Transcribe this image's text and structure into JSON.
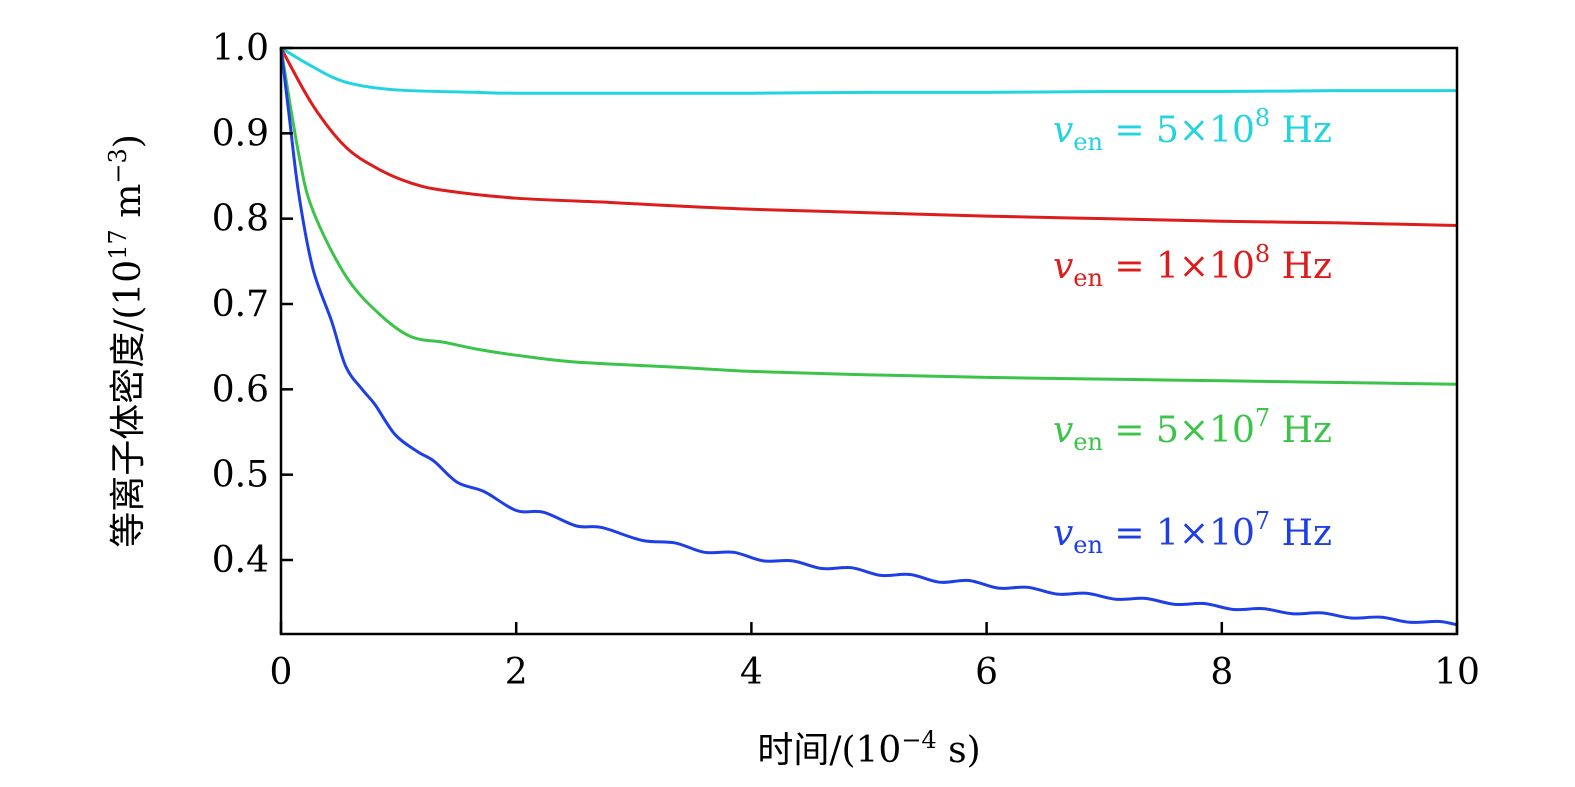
{
  "chart_data": {
    "type": "line",
    "xlabel": {
      "text": "时间/(10",
      "exp": "−4",
      "unit": " s)"
    },
    "ylabel": {
      "text": "等离子体密度/(10",
      "exp": "17",
      "unit": " m",
      "unit_exp": "−3",
      "close": ")"
    },
    "xlim": [
      0,
      10
    ],
    "ylim": [
      0.313,
      1.0
    ],
    "xticks": [
      "0",
      "2",
      "4",
      "6",
      "8",
      "10"
    ],
    "yticks": [
      "1.0",
      "0.9",
      "0.8",
      "0.7",
      "0.6",
      "0.5",
      "0.4"
    ],
    "grid": false,
    "legend": "inline labels at right",
    "series": [
      {
        "name": "v_en = 5×10^8 Hz",
        "label": {
          "symbol": "v",
          "sub": "en",
          "eq": " = 5×10",
          "exp": "8",
          "unit": " Hz"
        },
        "color": "#22d3e0",
        "x": [
          0,
          0.27,
          0.55,
          0.97,
          1.67,
          2,
          3,
          4,
          5,
          6,
          7,
          8,
          9,
          10
        ],
        "y": [
          1.0,
          0.978,
          0.96,
          0.951,
          0.948,
          0.947,
          0.947,
          0.947,
          0.948,
          0.948,
          0.949,
          0.949,
          0.95,
          0.95
        ]
      },
      {
        "name": "v_en = 1×10^8 Hz",
        "label": {
          "symbol": "v",
          "sub": "en",
          "eq": " = 1×10",
          "exp": "8",
          "unit": " Hz"
        },
        "color": "#dd1c1c",
        "x": [
          0,
          0.27,
          0.55,
          0.83,
          1.1,
          1.39,
          2,
          2.8,
          3.35,
          4,
          5,
          6,
          7,
          8,
          9,
          10
        ],
        "y": [
          1.0,
          0.933,
          0.884,
          0.858,
          0.842,
          0.833,
          0.824,
          0.819,
          0.815,
          0.811,
          0.807,
          0.803,
          0.8,
          0.797,
          0.795,
          0.792
        ]
      },
      {
        "name": "v_en = 5×10^7 Hz",
        "label": {
          "symbol": "v",
          "sub": "en",
          "eq": " = 5×10",
          "exp": "7",
          "unit": " Hz"
        },
        "color": "#3cc44a",
        "x": [
          0,
          0.15,
          0.27,
          0.55,
          0.83,
          1.1,
          1.39,
          1.67,
          2,
          2.5,
          3.35,
          4,
          5,
          6,
          7,
          8,
          9,
          10
        ],
        "y": [
          1.0,
          0.876,
          0.81,
          0.733,
          0.689,
          0.662,
          0.655,
          0.647,
          0.64,
          0.632,
          0.626,
          0.621,
          0.617,
          0.614,
          0.612,
          0.61,
          0.608,
          0.606
        ]
      },
      {
        "name": "v_en = 1×10^7 Hz",
        "label": {
          "symbol": "v",
          "sub": "en",
          "eq": " = 1×10",
          "exp": "7",
          "unit": " Hz"
        },
        "color": "#1f3fe6",
        "x": [
          0,
          0.07,
          0.15,
          0.27,
          0.43,
          0.55,
          0.69,
          0.8,
          0.97,
          1.16,
          1.3,
          1.5,
          1.73,
          2.0,
          2.23,
          2.51,
          2.73,
          3.07,
          3.35,
          3.6,
          3.85,
          4.1,
          4.35,
          4.6,
          4.85,
          5.1,
          5.35,
          5.6,
          5.85,
          6.1,
          6.35,
          6.6,
          6.85,
          7.1,
          7.35,
          7.6,
          7.85,
          8.1,
          8.35,
          8.6,
          8.85,
          9.1,
          9.35,
          9.6,
          9.85,
          10
        ],
        "y": [
          1.0,
          0.92,
          0.83,
          0.742,
          0.68,
          0.627,
          0.6,
          0.582,
          0.547,
          0.527,
          0.516,
          0.491,
          0.48,
          0.458,
          0.456,
          0.44,
          0.438,
          0.423,
          0.42,
          0.409,
          0.409,
          0.399,
          0.399,
          0.39,
          0.391,
          0.382,
          0.383,
          0.374,
          0.376,
          0.367,
          0.368,
          0.36,
          0.361,
          0.354,
          0.355,
          0.348,
          0.349,
          0.342,
          0.343,
          0.337,
          0.338,
          0.332,
          0.333,
          0.327,
          0.328,
          0.324
        ]
      }
    ]
  }
}
